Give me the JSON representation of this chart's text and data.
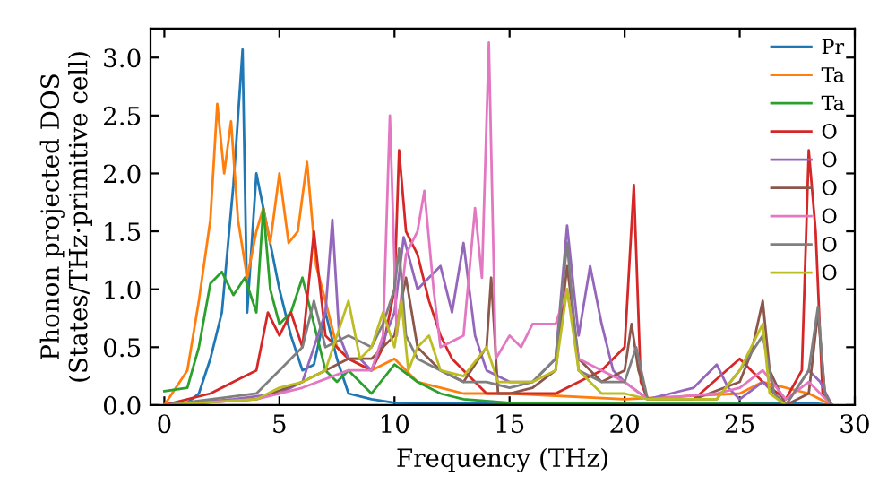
{
  "chart_data": {
    "type": "line",
    "xlabel": "Frequency (THz)",
    "ylabel": "Phonon projected DOS\n(States/THz·primitive cell)",
    "xlim": [
      -0.6,
      30
    ],
    "ylim": [
      0,
      3.25
    ],
    "xticks": [
      0,
      5,
      10,
      15,
      20,
      25,
      30
    ],
    "yticks": [
      {
        "value": 0,
        "label": "0.0"
      },
      {
        "value": 0.5,
        "label": "0.5"
      },
      {
        "value": 1,
        "label": "1.0"
      },
      {
        "value": 1.5,
        "label": "1.5"
      },
      {
        "value": 2,
        "label": "2.0"
      },
      {
        "value": 2.5,
        "label": "2.5"
      },
      {
        "value": 3,
        "label": "3.0"
      }
    ],
    "legend": "top right",
    "grid": false,
    "marker": "none",
    "line_style": "solid",
    "series": [
      {
        "name": "Pr",
        "color": "#1f77b4",
        "x": [
          0,
          1,
          1.5,
          2,
          2.5,
          3,
          3.4,
          3.6,
          4,
          4.5,
          5,
          5.5,
          6,
          6.5,
          7,
          7.5,
          8,
          9,
          10,
          15,
          20,
          25,
          28,
          29
        ],
        "values": [
          0,
          0.02,
          0.1,
          0.4,
          0.8,
          1.9,
          3.07,
          0.8,
          2.0,
          1.5,
          1.0,
          0.6,
          0.3,
          0.35,
          0.8,
          0.4,
          0.1,
          0.05,
          0.02,
          0.01,
          0.01,
          0.01,
          0.02,
          0
        ]
      },
      {
        "name": "Ta",
        "color": "#ff7f0e",
        "x": [
          0,
          1,
          1.5,
          2,
          2.3,
          2.6,
          2.9,
          3.2,
          3.6,
          4,
          4.3,
          4.6,
          5,
          5.4,
          5.8,
          6.2,
          6.6,
          7,
          7.5,
          8,
          9,
          10,
          11,
          13,
          15,
          20,
          25,
          26,
          28,
          29
        ],
        "values": [
          0,
          0.3,
          0.9,
          1.6,
          2.6,
          2.0,
          2.45,
          1.6,
          1.1,
          1.5,
          1.7,
          1.4,
          2.0,
          1.4,
          1.5,
          2.1,
          1.2,
          0.9,
          0.5,
          0.4,
          0.3,
          0.4,
          0.2,
          0.1,
          0.1,
          0.05,
          0.1,
          0.2,
          0.1,
          0
        ]
      },
      {
        "name": "Ta",
        "color": "#2ca02c",
        "x": [
          0,
          1,
          1.5,
          2,
          2.5,
          3,
          3.5,
          4,
          4.3,
          4.6,
          5,
          5.5,
          6,
          6.5,
          7,
          7.5,
          8,
          9,
          10,
          11,
          12,
          13,
          15,
          20,
          25,
          29
        ],
        "values": [
          0.12,
          0.15,
          0.5,
          1.05,
          1.15,
          0.95,
          1.1,
          0.8,
          1.7,
          1.0,
          0.7,
          0.8,
          1.1,
          0.7,
          0.3,
          0.2,
          0.3,
          0.1,
          0.35,
          0.2,
          0.1,
          0.05,
          0.02,
          0.01,
          0.01,
          0
        ]
      },
      {
        "name": "O",
        "color": "#d62728",
        "x": [
          0,
          2,
          3,
          4,
          4.5,
          5,
          5.5,
          6,
          6.5,
          7,
          7.5,
          8,
          9,
          9.5,
          10,
          10.2,
          10.5,
          11,
          11.5,
          12,
          12.5,
          13,
          14,
          15,
          17,
          19,
          20,
          20.4,
          20.7,
          21,
          23,
          25,
          25.5,
          26,
          27,
          27.7,
          28,
          28.3,
          28.6,
          29
        ],
        "values": [
          0,
          0.1,
          0.2,
          0.3,
          0.8,
          0.6,
          0.8,
          0.5,
          1.5,
          0.6,
          0.5,
          0.4,
          0.3,
          0.5,
          1.0,
          2.2,
          1.5,
          1.3,
          0.9,
          0.6,
          0.4,
          0.3,
          0.1,
          0.1,
          0.1,
          0.3,
          0.5,
          1.9,
          0.2,
          0.05,
          0.05,
          0.4,
          0.3,
          0.2,
          0.05,
          0.3,
          2.2,
          1.5,
          0.1,
          0
        ]
      },
      {
        "name": "O",
        "color": "#9467bd",
        "x": [
          0,
          3,
          5,
          6,
          7,
          7.3,
          7.6,
          8,
          8.5,
          9,
          10,
          10.4,
          11,
          12,
          12.5,
          13,
          13.5,
          14,
          15,
          16,
          17,
          17.5,
          18,
          18.5,
          19,
          19.5,
          20,
          21,
          22,
          23,
          24,
          24.5,
          25,
          26,
          26.5,
          27,
          28,
          28.5,
          29
        ],
        "values": [
          0,
          0.05,
          0.1,
          0.2,
          0.8,
          1.6,
          0.6,
          0.4,
          0.4,
          0.3,
          0.8,
          1.45,
          1.0,
          1.2,
          0.8,
          1.4,
          0.6,
          0.3,
          0.2,
          0.2,
          0.4,
          1.55,
          0.6,
          1.2,
          0.7,
          0.3,
          0.2,
          0.05,
          0.1,
          0.15,
          0.35,
          0.15,
          0.05,
          0.2,
          0.1,
          0,
          0.3,
          0.2,
          0
        ]
      },
      {
        "name": "O",
        "color": "#8c564b",
        "x": [
          0,
          4,
          6,
          7,
          8,
          9,
          10,
          10.5,
          11,
          12,
          13,
          14,
          14.2,
          14.5,
          15,
          16,
          17,
          17.5,
          18,
          19,
          20,
          20.3,
          20.6,
          21,
          23,
          25,
          25.5,
          26,
          26.3,
          27,
          28,
          28.4,
          28.7,
          29
        ],
        "values": [
          0,
          0.05,
          0.2,
          0.3,
          0.4,
          0.4,
          0.6,
          1.1,
          0.5,
          0.3,
          0.2,
          0.5,
          1.1,
          0.1,
          0.1,
          0.15,
          0.3,
          1.2,
          0.4,
          0.2,
          0.3,
          0.7,
          0.3,
          0.05,
          0.05,
          0.2,
          0.45,
          0.9,
          0.3,
          0,
          0.1,
          0.8,
          0.1,
          0
        ]
      },
      {
        "name": "O",
        "color": "#e377c2",
        "x": [
          0,
          4,
          6,
          8,
          9,
          9.5,
          9.8,
          10.1,
          10.5,
          11,
          11.3,
          11.7,
          12,
          13,
          13.5,
          13.8,
          14.1,
          14.4,
          15,
          15.5,
          16,
          17,
          17.5,
          18,
          19,
          20,
          21,
          24,
          25,
          26,
          27,
          28,
          29
        ],
        "values": [
          0,
          0.05,
          0.15,
          0.3,
          0.3,
          0.6,
          2.5,
          0.6,
          1.3,
          1.5,
          1.85,
          1.0,
          0.5,
          0.6,
          1.7,
          1.1,
          3.13,
          0.4,
          0.6,
          0.5,
          0.7,
          0.7,
          1.0,
          0.4,
          0.3,
          0.2,
          0.05,
          0.1,
          0.15,
          0.3,
          0.05,
          0.2,
          0
        ]
      },
      {
        "name": "O",
        "color": "#7f7f7f",
        "x": [
          0,
          4,
          5,
          6,
          6.5,
          7,
          8,
          9,
          9.5,
          10,
          10.2,
          10.5,
          11,
          12,
          13,
          14,
          15,
          16,
          17,
          17.5,
          18,
          19,
          20,
          20.5,
          21,
          24,
          25,
          26,
          26.5,
          27,
          28,
          28.4,
          28.7,
          29
        ],
        "values": [
          0,
          0.1,
          0.3,
          0.5,
          0.9,
          0.5,
          0.6,
          0.5,
          0.7,
          1.0,
          1.35,
          0.6,
          0.4,
          0.3,
          0.2,
          0.2,
          0.15,
          0.2,
          0.4,
          1.4,
          0.3,
          0.2,
          0.2,
          0.5,
          0.05,
          0.05,
          0.3,
          0.6,
          0.1,
          0,
          0.3,
          0.85,
          0.1,
          0
        ]
      },
      {
        "name": "O",
        "color": "#bcbd22",
        "x": [
          0,
          4,
          5,
          6,
          7,
          8,
          8.5,
          9,
          9.5,
          10,
          10.3,
          10.6,
          11,
          11.5,
          12,
          13,
          14,
          14.5,
          15,
          16,
          17,
          17.5,
          18,
          19,
          20,
          21,
          24,
          25,
          26,
          26.3,
          27,
          29
        ],
        "values": [
          0,
          0.05,
          0.15,
          0.2,
          0.3,
          0.9,
          0.4,
          0.5,
          0.8,
          0.5,
          0.9,
          0.3,
          0.5,
          0.6,
          0.3,
          0.25,
          0.5,
          0.2,
          0.2,
          0.2,
          0.3,
          1.0,
          0.3,
          0.1,
          0.1,
          0.05,
          0.05,
          0.3,
          0.7,
          0.1,
          0,
          0
        ]
      }
    ]
  }
}
